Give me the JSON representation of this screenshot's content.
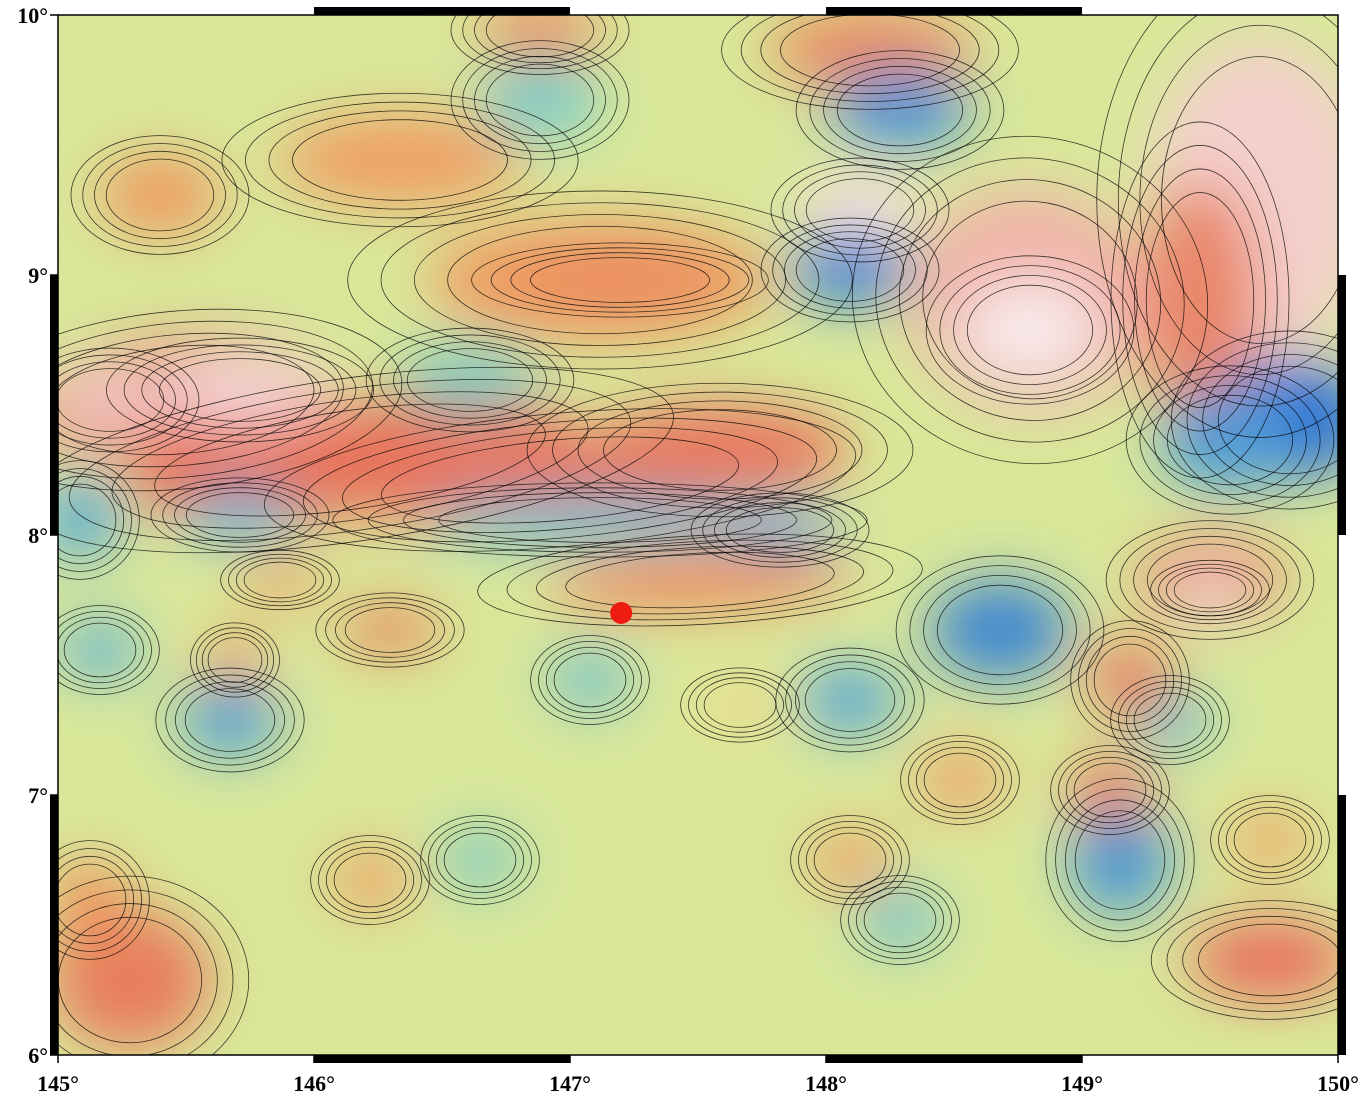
{
  "chart_data": {
    "type": "scatter",
    "x": [
      147.2
    ],
    "values": [
      7.7
    ],
    "color": "#ee1c10",
    "xlim": [
      145,
      150
    ],
    "ylim": [
      6,
      10
    ],
    "xticks": [
      {
        "value": 145,
        "label": "145°"
      },
      {
        "value": 146,
        "label": "146°"
      },
      {
        "value": 147,
        "label": "147°"
      },
      {
        "value": 148,
        "label": "148°"
      },
      {
        "value": 149,
        "label": "149°"
      },
      {
        "value": 150,
        "label": "150°"
      }
    ],
    "yticks": [
      {
        "value": 6,
        "label": "6°"
      },
      {
        "value": 7,
        "label": "7°"
      },
      {
        "value": 8,
        "label": "8°"
      },
      {
        "value": 9,
        "label": "9°"
      },
      {
        "value": 10,
        "label": "10°"
      }
    ]
  }
}
